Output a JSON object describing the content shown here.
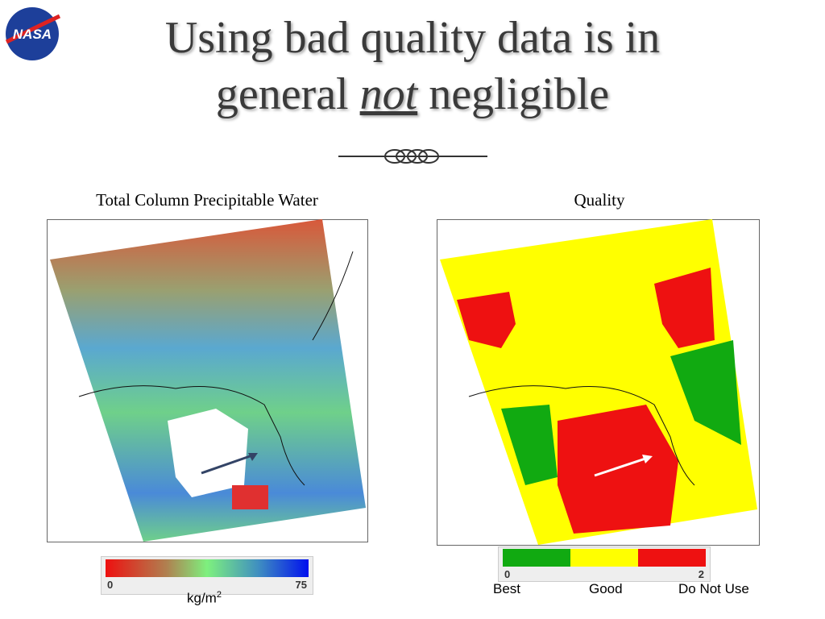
{
  "logo": "NASA",
  "title": {
    "line1": "Using bad quality data is in",
    "line2_start": "general",
    "emphasis": "not",
    "line2_end": "negligible"
  },
  "left_panel": {
    "title": "Total Column Precipitable Water",
    "colorbar": {
      "min": 0,
      "max": 75,
      "unit": "kg/m",
      "unit_exponent": "2"
    }
  },
  "right_panel": {
    "title": "Quality",
    "colorbar": {
      "min": 0,
      "max": 2,
      "labels": [
        "Best",
        "Good",
        "Do Not Use"
      ]
    }
  }
}
